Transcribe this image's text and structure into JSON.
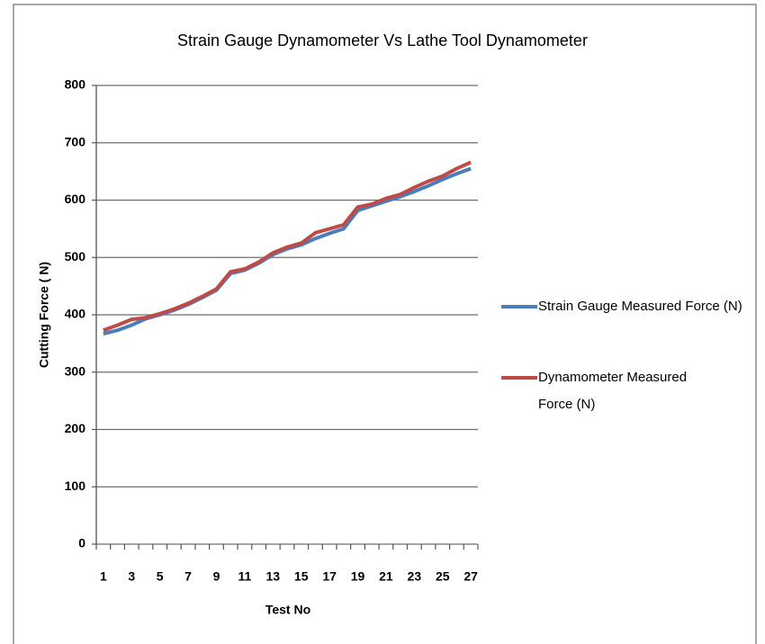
{
  "chart_data": {
    "type": "line",
    "title": "Strain Gauge Dynamometer Vs Lathe Tool Dynamometer",
    "x_label": "Test No",
    "y_label": "Cutting Force ( N)",
    "categories": [
      1,
      null,
      3,
      null,
      5,
      null,
      7,
      null,
      9,
      null,
      11,
      null,
      13,
      null,
      15,
      null,
      17,
      null,
      19,
      null,
      21,
      null,
      23,
      null,
      25,
      null,
      27
    ],
    "series": [
      {
        "name": "Strain Gauge Measured Force (N)",
        "color": "#4a7ebb",
        "values": [
          367,
          373,
          382,
          393,
          400,
          408,
          418,
          430,
          443,
          472,
          478,
          490,
          505,
          515,
          522,
          533,
          542,
          550,
          582,
          590,
          598,
          606,
          615,
          625,
          636,
          646,
          655
        ]
      },
      {
        "name": "Dynamometer Measured Force (N)",
        "color": "#be4b48",
        "values": [
          373,
          382,
          392,
          395,
          402,
          410,
          420,
          432,
          445,
          475,
          480,
          492,
          508,
          518,
          525,
          543,
          550,
          557,
          588,
          593,
          603,
          610,
          622,
          633,
          642,
          655,
          666
        ]
      }
    ],
    "ylim": [
      0,
      800
    ],
    "yticks": [
      0,
      100,
      200,
      300,
      400,
      500,
      600,
      700,
      800
    ],
    "grid": true,
    "legend": "right"
  }
}
